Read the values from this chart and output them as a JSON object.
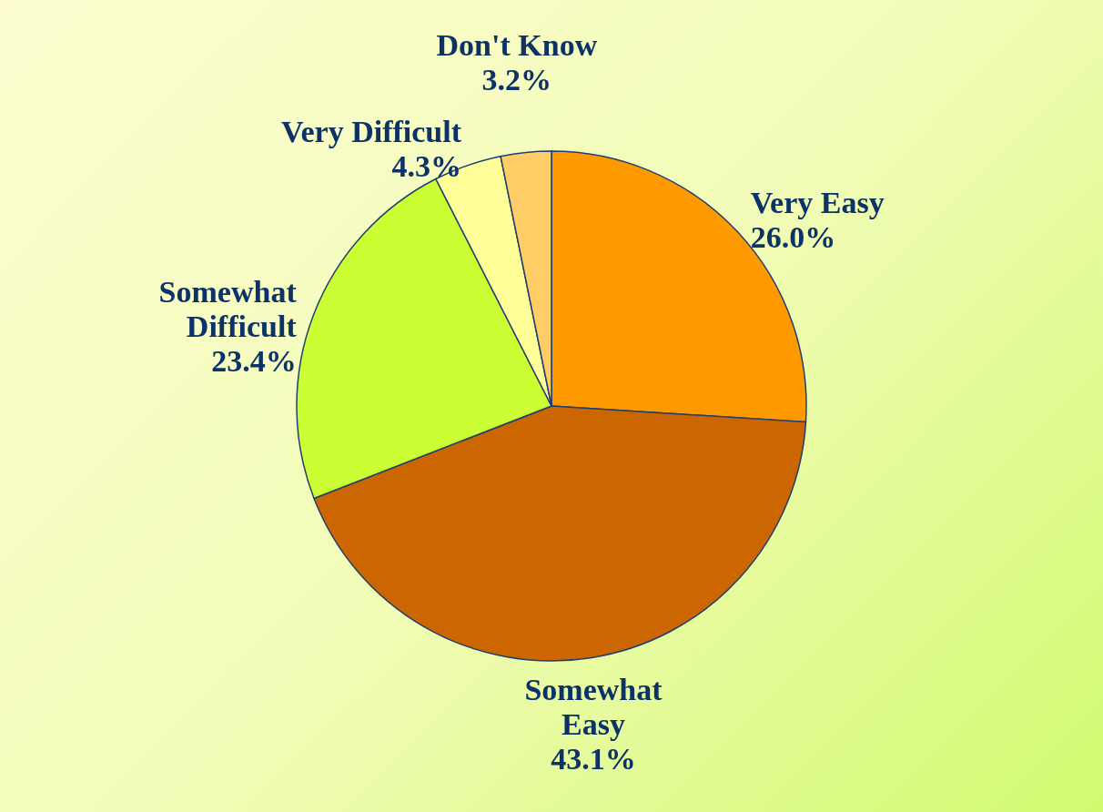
{
  "chart_data": {
    "type": "pie",
    "categories": [
      "Very Easy",
      "Somewhat\nEasy",
      "Somewhat\nDifficult",
      "Very Difficult",
      "Don't Know"
    ],
    "values": [
      26.0,
      43.1,
      23.4,
      4.3,
      3.2
    ],
    "colors": [
      "#ff9900",
      "#cc6600",
      "#ccff33",
      "#ffff99",
      "#ffcc66"
    ],
    "value_labels": [
      "26.0%",
      "43.1%",
      "23.4%",
      "4.3%",
      "3.2%"
    ]
  }
}
